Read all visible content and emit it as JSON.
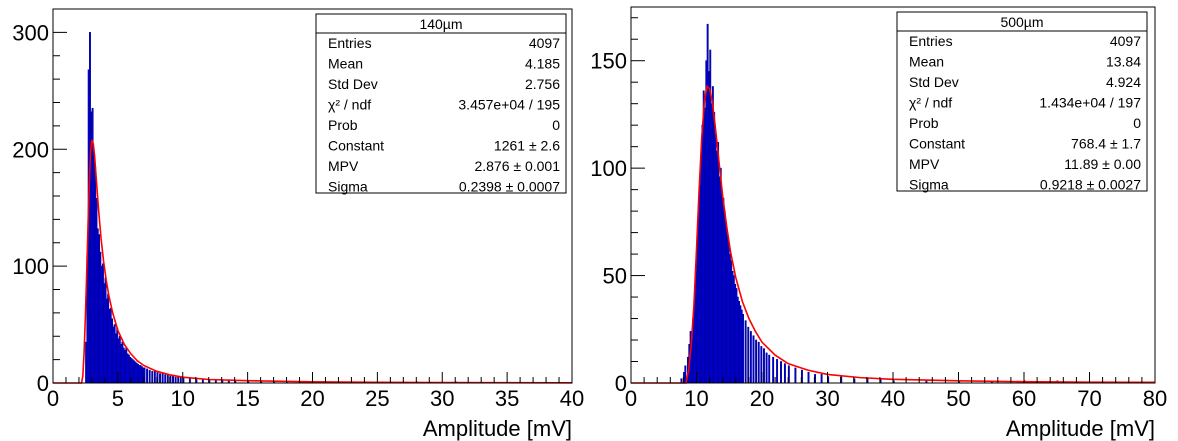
{
  "chart_data": [
    {
      "type": "histogram",
      "title": "140µm",
      "xlabel": "Amplitude [mV]",
      "ylabel": "",
      "xlim": [
        0,
        40
      ],
      "ylim": [
        0,
        320
      ],
      "x_ticks": [
        "0",
        "5",
        "10",
        "15",
        "20",
        "25",
        "30",
        "35",
        "40"
      ],
      "y_ticks": [
        "0",
        "100",
        "200",
        "300"
      ],
      "x_tick_values": [
        0,
        5,
        10,
        15,
        20,
        25,
        30,
        35,
        40
      ],
      "y_tick_values": [
        0,
        100,
        200,
        300
      ],
      "series": [
        {
          "kind": "histogram",
          "color": "#0000ee",
          "bin_width": 0.1,
          "bins": [
            [
              2.5,
              35
            ],
            [
              2.6,
              110
            ],
            [
              2.7,
              268
            ],
            [
              2.8,
              300
            ],
            [
              2.9,
              232
            ],
            [
              3.0,
              235
            ],
            [
              3.1,
              195
            ],
            [
              3.2,
              185
            ],
            [
              3.3,
              158
            ],
            [
              3.4,
              132
            ],
            [
              3.5,
              127
            ],
            [
              3.6,
              112
            ],
            [
              3.7,
              100
            ],
            [
              3.8,
              102
            ],
            [
              3.9,
              85
            ],
            [
              4.0,
              90
            ],
            [
              4.1,
              72
            ],
            [
              4.2,
              76
            ],
            [
              4.3,
              63
            ],
            [
              4.4,
              64
            ],
            [
              4.5,
              55
            ],
            [
              4.6,
              48
            ],
            [
              4.7,
              50
            ],
            [
              4.8,
              42
            ],
            [
              4.9,
              47
            ],
            [
              5.0,
              38
            ],
            [
              5.1,
              40
            ],
            [
              5.2,
              33
            ],
            [
              5.3,
              35
            ],
            [
              5.4,
              30
            ],
            [
              5.5,
              28
            ],
            [
              5.6,
              30
            ],
            [
              5.7,
              25
            ],
            [
              5.8,
              24
            ],
            [
              5.9,
              22
            ],
            [
              6.0,
              21
            ],
            [
              6.1,
              20
            ],
            [
              6.2,
              19
            ],
            [
              6.3,
              18
            ],
            [
              6.4,
              17
            ],
            [
              6.5,
              16
            ],
            [
              6.6,
              15
            ],
            [
              6.7,
              15
            ],
            [
              6.8,
              14
            ],
            [
              6.9,
              13
            ],
            [
              7.0,
              13
            ],
            [
              7.2,
              12
            ],
            [
              7.4,
              11
            ],
            [
              7.6,
              10
            ],
            [
              7.8,
              10
            ],
            [
              8.0,
              9
            ],
            [
              8.2,
              8
            ],
            [
              8.4,
              8
            ],
            [
              8.6,
              7
            ],
            [
              8.8,
              7
            ],
            [
              9.0,
              6
            ],
            [
              9.2,
              6
            ],
            [
              9.4,
              5
            ],
            [
              9.6,
              5
            ],
            [
              9.8,
              5
            ],
            [
              10.0,
              4
            ],
            [
              10.5,
              4
            ],
            [
              11.0,
              3
            ],
            [
              11.5,
              3
            ],
            [
              12.0,
              3
            ],
            [
              12.5,
              2
            ],
            [
              13.0,
              2
            ],
            [
              13.5,
              2
            ],
            [
              14.0,
              2
            ],
            [
              15.0,
              2
            ],
            [
              16.0,
              1
            ],
            [
              17.0,
              1
            ],
            [
              18.0,
              1
            ],
            [
              19.0,
              1
            ],
            [
              20.0,
              1
            ],
            [
              21.0,
              1
            ],
            [
              22.0,
              1
            ],
            [
              23.0,
              1
            ],
            [
              25.0,
              1
            ],
            [
              28.0,
              1
            ],
            [
              31.0,
              1
            ]
          ]
        },
        {
          "kind": "fit",
          "color": "#ff0000",
          "points": [
            [
              0,
              0
            ],
            [
              2.2,
              0
            ],
            [
              2.3,
              6
            ],
            [
              2.4,
              27
            ],
            [
              2.5,
              58
            ],
            [
              2.6,
              95
            ],
            [
              2.7,
              135
            ],
            [
              2.8,
              172
            ],
            [
              2.9,
              198
            ],
            [
              3.0,
              208
            ],
            [
              3.1,
              205
            ],
            [
              3.2,
              195
            ],
            [
              3.3,
              180
            ],
            [
              3.4,
              165
            ],
            [
              3.5,
              150
            ],
            [
              3.7,
              124
            ],
            [
              3.9,
              104
            ],
            [
              4.1,
              88
            ],
            [
              4.3,
              75
            ],
            [
              4.6,
              60
            ],
            [
              5.0,
              45
            ],
            [
              5.5,
              33
            ],
            [
              6.0,
              25
            ],
            [
              6.5,
              19
            ],
            [
              7.0,
              15
            ],
            [
              8.0,
              10
            ],
            [
              9.0,
              7
            ],
            [
              10.0,
              5
            ],
            [
              12.0,
              3
            ],
            [
              15.0,
              2
            ],
            [
              20.0,
              1
            ],
            [
              25.0,
              0.6
            ],
            [
              30.0,
              0.4
            ],
            [
              35.0,
              0.3
            ],
            [
              40.0,
              0.2
            ]
          ]
        }
      ],
      "stats": [
        {
          "label": "Entries",
          "value": "4097"
        },
        {
          "label": "Mean",
          "value": "4.185"
        },
        {
          "label": "Std Dev",
          "value": "2.756"
        },
        {
          "label": "χ² / ndf",
          "value": "3.457e+04 / 195"
        },
        {
          "label": "Prob",
          "value": "0"
        },
        {
          "label": "Constant",
          "value": "1261 ± 2.6"
        },
        {
          "label": "MPV",
          "value": "2.876 ± 0.001"
        },
        {
          "label": "Sigma",
          "value": "0.2398 ± 0.0007"
        }
      ]
    },
    {
      "type": "histogram",
      "title": "500µm",
      "xlabel": "Amplitude [mV]",
      "ylabel": "",
      "xlim": [
        0,
        80
      ],
      "ylim": [
        0,
        175
      ],
      "x_ticks": [
        "0",
        "10",
        "20",
        "30",
        "40",
        "50",
        "60",
        "70",
        "80"
      ],
      "y_ticks": [
        "0",
        "50",
        "100",
        "150"
      ],
      "x_tick_values": [
        0,
        10,
        20,
        30,
        40,
        50,
        60,
        70,
        80
      ],
      "y_tick_values": [
        0,
        50,
        100,
        150
      ],
      "series": [
        {
          "kind": "histogram",
          "color": "#0000ee",
          "bin_width": 0.2,
          "bins": [
            [
              7.6,
              2
            ],
            [
              8.0,
              5
            ],
            [
              8.2,
              8
            ],
            [
              8.6,
              12
            ],
            [
              8.8,
              18
            ],
            [
              9.0,
              24
            ],
            [
              9.2,
              20
            ],
            [
              9.4,
              30
            ],
            [
              9.6,
              40
            ],
            [
              9.8,
              52
            ],
            [
              10.0,
              66
            ],
            [
              10.2,
              82
            ],
            [
              10.4,
              92
            ],
            [
              10.6,
              104
            ],
            [
              10.8,
              120
            ],
            [
              11.0,
              136
            ],
            [
              11.2,
              128
            ],
            [
              11.4,
              150
            ],
            [
              11.6,
              167
            ],
            [
              11.8,
              145
            ],
            [
              12.0,
              155
            ],
            [
              12.2,
              130
            ],
            [
              12.4,
              138
            ],
            [
              12.6,
              126
            ],
            [
              12.8,
              116
            ],
            [
              13.0,
              108
            ],
            [
              13.2,
              112
            ],
            [
              13.4,
              96
            ],
            [
              13.6,
              100
            ],
            [
              13.8,
              88
            ],
            [
              14.0,
              86
            ],
            [
              14.2,
              80
            ],
            [
              14.4,
              75
            ],
            [
              14.6,
              70
            ],
            [
              14.8,
              66
            ],
            [
              15.0,
              60
            ],
            [
              15.2,
              57
            ],
            [
              15.4,
              52
            ],
            [
              15.6,
              50
            ],
            [
              15.8,
              46
            ],
            [
              16.0,
              44
            ],
            [
              16.2,
              40
            ],
            [
              16.4,
              38
            ],
            [
              16.6,
              36
            ],
            [
              16.8,
              34
            ],
            [
              17.0,
              32
            ],
            [
              17.4,
              29
            ],
            [
              17.8,
              26
            ],
            [
              18.2,
              24
            ],
            [
              18.6,
              22
            ],
            [
              19.0,
              20
            ],
            [
              19.4,
              19
            ],
            [
              19.8,
              17
            ],
            [
              20.2,
              16
            ],
            [
              20.6,
              14
            ],
            [
              21.0,
              13
            ],
            [
              21.6,
              12
            ],
            [
              22.2,
              11
            ],
            [
              22.8,
              10
            ],
            [
              23.4,
              9
            ],
            [
              24.0,
              8
            ],
            [
              25.0,
              7
            ],
            [
              26.0,
              6
            ],
            [
              27.0,
              5
            ],
            [
              28.0,
              4
            ],
            [
              29.0,
              4
            ],
            [
              30.0,
              3
            ],
            [
              32.0,
              3
            ],
            [
              34.0,
              2
            ],
            [
              36.0,
              2
            ],
            [
              38.0,
              2
            ],
            [
              40.0,
              1
            ],
            [
              45.0,
              1
            ],
            [
              50.0,
              1
            ],
            [
              55.0,
              1
            ],
            [
              60.0,
              1
            ],
            [
              65.0,
              1
            ]
          ]
        },
        {
          "kind": "fit",
          "color": "#ff0000",
          "points": [
            [
              0,
              0
            ],
            [
              8.4,
              0
            ],
            [
              8.8,
              6
            ],
            [
              9.2,
              18
            ],
            [
              9.6,
              36
            ],
            [
              10.0,
              62
            ],
            [
              10.4,
              90
            ],
            [
              10.8,
              114
            ],
            [
              11.2,
              131
            ],
            [
              11.6,
              138
            ],
            [
              12.0,
              137
            ],
            [
              12.4,
              131
            ],
            [
              12.8,
              121
            ],
            [
              13.2,
              110
            ],
            [
              13.6,
              98
            ],
            [
              14.0,
              87
            ],
            [
              14.6,
              73
            ],
            [
              15.2,
              61
            ],
            [
              16.0,
              49
            ],
            [
              17.0,
              38
            ],
            [
              18.0,
              30
            ],
            [
              19.0,
              24
            ],
            [
              20.0,
              19
            ],
            [
              22.0,
              13
            ],
            [
              24.0,
              9
            ],
            [
              27.0,
              6
            ],
            [
              30.0,
              4
            ],
            [
              35.0,
              2.5
            ],
            [
              40.0,
              1.7
            ],
            [
              50.0,
              1
            ],
            [
              60.0,
              0.6
            ],
            [
              70.0,
              0.4
            ],
            [
              80.0,
              0.3
            ]
          ]
        }
      ],
      "stats": [
        {
          "label": "Entries",
          "value": "4097"
        },
        {
          "label": "Mean",
          "value": "13.84"
        },
        {
          "label": "Std Dev",
          "value": "4.924"
        },
        {
          "label": "χ² / ndf",
          "value": "1.434e+04 / 197"
        },
        {
          "label": "Prob",
          "value": "0"
        },
        {
          "label": "Constant",
          "value": "768.4 ± 1.7"
        },
        {
          "label": "MPV",
          "value": "11.89 ± 0.00"
        },
        {
          "label": "Sigma",
          "value": "0.9218 ± 0.0027"
        }
      ]
    }
  ]
}
